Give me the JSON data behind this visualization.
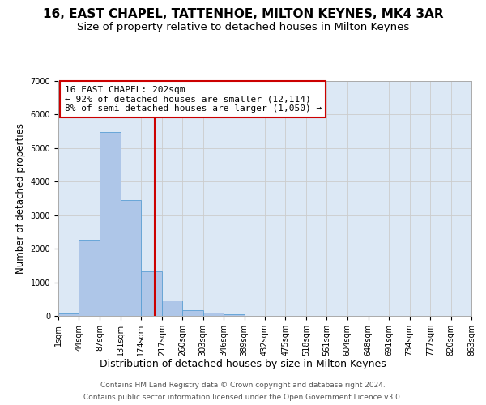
{
  "title": "16, EAST CHAPEL, TATTENHOE, MILTON KEYNES, MK4 3AR",
  "subtitle": "Size of property relative to detached houses in Milton Keynes",
  "xlabel": "Distribution of detached houses by size in Milton Keynes",
  "ylabel": "Number of detached properties",
  "footer_line1": "Contains HM Land Registry data © Crown copyright and database right 2024.",
  "footer_line2": "Contains public sector information licensed under the Open Government Licence v3.0.",
  "annotation_line1": "16 EAST CHAPEL: 202sqm",
  "annotation_line2": "← 92% of detached houses are smaller (12,114)",
  "annotation_line3": "8% of semi-detached houses are larger (1,050) →",
  "bar_values": [
    75,
    2280,
    5480,
    3440,
    1320,
    460,
    160,
    90,
    55,
    0,
    0,
    0,
    0,
    0,
    0,
    0,
    0,
    0,
    0,
    0
  ],
  "bin_edges": [
    1,
    44,
    87,
    131,
    174,
    217,
    260,
    303,
    346,
    389,
    432,
    475,
    518,
    561,
    604,
    648,
    691,
    734,
    777,
    820,
    863
  ],
  "tick_labels": [
    "1sqm",
    "44sqm",
    "87sqm",
    "131sqm",
    "174sqm",
    "217sqm",
    "260sqm",
    "303sqm",
    "346sqm",
    "389sqm",
    "432sqm",
    "475sqm",
    "518sqm",
    "561sqm",
    "604sqm",
    "648sqm",
    "691sqm",
    "734sqm",
    "777sqm",
    "820sqm",
    "863sqm"
  ],
  "property_size": 202,
  "bar_color": "#aec6e8",
  "bar_edge_color": "#5a9fd4",
  "vline_color": "#cc0000",
  "annotation_box_color": "#cc0000",
  "background_color": "#dce8f5",
  "ylim": [
    0,
    7000
  ],
  "title_fontsize": 11,
  "subtitle_fontsize": 9.5,
  "ylabel_fontsize": 8.5,
  "xlabel_fontsize": 9,
  "tick_fontsize": 7,
  "annotation_fontsize": 8,
  "footer_fontsize": 6.5
}
